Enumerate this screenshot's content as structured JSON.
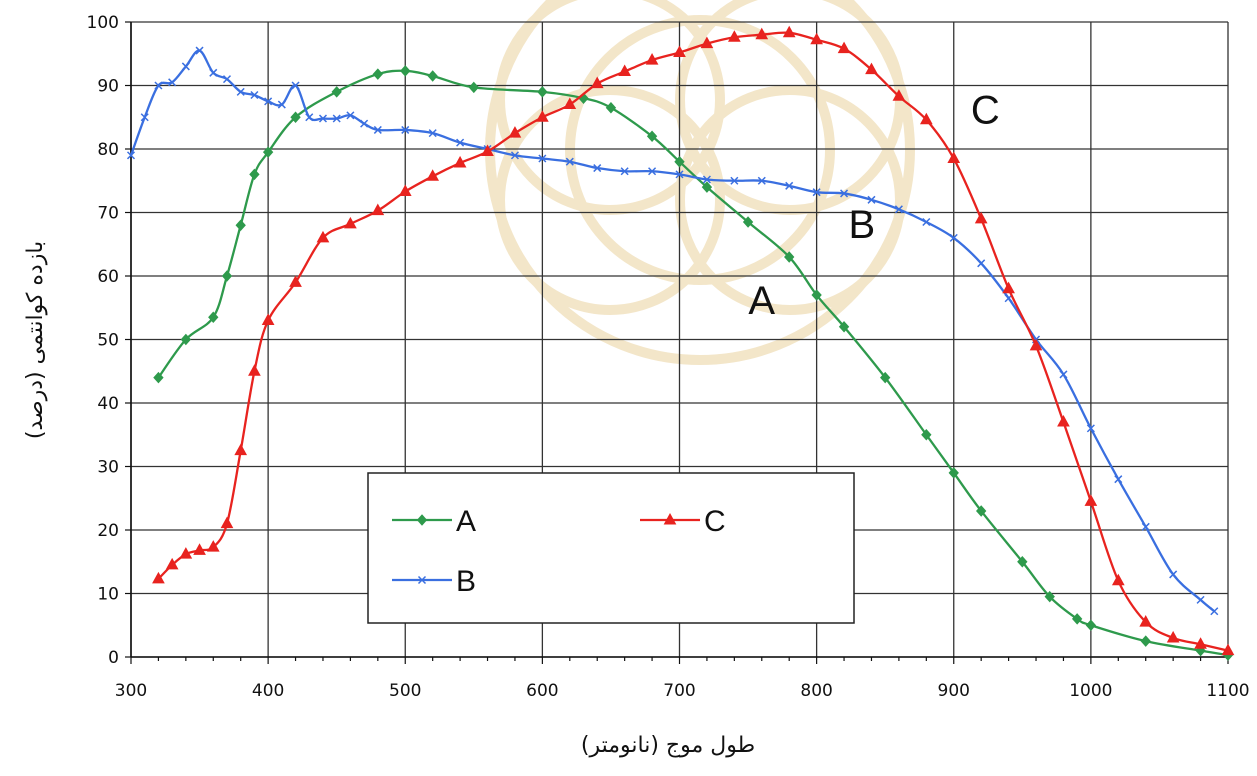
{
  "chart_data": {
    "type": "line",
    "xlabel": "طول موج (نانومتر)",
    "ylabel": "بازده کوانتمی (درصد)",
    "xlim": [
      300,
      1100
    ],
    "ylim": [
      0,
      100
    ],
    "x_ticks": [
      300,
      400,
      500,
      600,
      700,
      800,
      900,
      1000,
      1100
    ],
    "y_ticks": [
      0,
      10,
      20,
      30,
      40,
      50,
      60,
      70,
      80,
      90,
      100
    ],
    "grid": true,
    "legend": {
      "placement": "bottom-center",
      "entries": [
        "A",
        "B",
        "C"
      ]
    },
    "series": [
      {
        "name": "A",
        "color": "#2e9a4c",
        "marker": "diamond",
        "points": [
          [
            320,
            44
          ],
          [
            340,
            50
          ],
          [
            360,
            53.5
          ],
          [
            370,
            60
          ],
          [
            380,
            68
          ],
          [
            390,
            76
          ],
          [
            400,
            79.5
          ],
          [
            420,
            85
          ],
          [
            450,
            89
          ],
          [
            480,
            91.8
          ],
          [
            500,
            92.3
          ],
          [
            520,
            91.5
          ],
          [
            550,
            89.7
          ],
          [
            600,
            89
          ],
          [
            630,
            88
          ],
          [
            650,
            86.5
          ],
          [
            680,
            82
          ],
          [
            700,
            78
          ],
          [
            720,
            74
          ],
          [
            750,
            68.5
          ],
          [
            780,
            63
          ],
          [
            800,
            57
          ],
          [
            820,
            52
          ],
          [
            850,
            44
          ],
          [
            880,
            35
          ],
          [
            900,
            29
          ],
          [
            920,
            23
          ],
          [
            950,
            15
          ],
          [
            970,
            9.5
          ],
          [
            990,
            6
          ],
          [
            1000,
            5
          ],
          [
            1040,
            2.5
          ],
          [
            1080,
            1
          ],
          [
            1100,
            0.3
          ]
        ]
      },
      {
        "name": "B",
        "color": "#3a6fe0",
        "marker": "x",
        "points": [
          [
            300,
            79
          ],
          [
            310,
            85
          ],
          [
            320,
            90
          ],
          [
            330,
            90.5
          ],
          [
            340,
            93
          ],
          [
            350,
            95.5
          ],
          [
            360,
            92
          ],
          [
            370,
            91
          ],
          [
            380,
            89
          ],
          [
            390,
            88.5
          ],
          [
            400,
            87.5
          ],
          [
            410,
            87
          ],
          [
            420,
            90
          ],
          [
            430,
            85
          ],
          [
            440,
            84.8
          ],
          [
            450,
            84.8
          ],
          [
            460,
            85.3
          ],
          [
            470,
            84
          ],
          [
            480,
            83
          ],
          [
            500,
            83
          ],
          [
            520,
            82.5
          ],
          [
            540,
            81
          ],
          [
            560,
            80
          ],
          [
            580,
            79
          ],
          [
            600,
            78.5
          ],
          [
            620,
            78
          ],
          [
            640,
            77
          ],
          [
            660,
            76.5
          ],
          [
            680,
            76.5
          ],
          [
            700,
            76
          ],
          [
            720,
            75.2
          ],
          [
            740,
            75
          ],
          [
            760,
            75
          ],
          [
            780,
            74.2
          ],
          [
            800,
            73.2
          ],
          [
            820,
            73
          ],
          [
            840,
            72
          ],
          [
            860,
            70.5
          ],
          [
            880,
            68.5
          ],
          [
            900,
            66
          ],
          [
            920,
            62
          ],
          [
            940,
            56.5
          ],
          [
            960,
            50
          ],
          [
            980,
            44.5
          ],
          [
            1000,
            36
          ],
          [
            1020,
            28
          ],
          [
            1040,
            20.5
          ],
          [
            1060,
            13
          ],
          [
            1080,
            9
          ],
          [
            1090,
            7.2
          ]
        ]
      },
      {
        "name": "C",
        "color": "#e8231f",
        "marker": "triangle",
        "points": [
          [
            320,
            12.3
          ],
          [
            330,
            14.5
          ],
          [
            340,
            16.2
          ],
          [
            350,
            16.8
          ],
          [
            360,
            17.3
          ],
          [
            370,
            21
          ],
          [
            380,
            32.5
          ],
          [
            390,
            45
          ],
          [
            400,
            53
          ],
          [
            420,
            59
          ],
          [
            440,
            66
          ],
          [
            460,
            68.2
          ],
          [
            480,
            70.3
          ],
          [
            500,
            73.3
          ],
          [
            520,
            75.7
          ],
          [
            540,
            77.8
          ],
          [
            560,
            79.6
          ],
          [
            580,
            82.5
          ],
          [
            600,
            85
          ],
          [
            620,
            87
          ],
          [
            640,
            90.3
          ],
          [
            660,
            92.2
          ],
          [
            680,
            94
          ],
          [
            700,
            95.2
          ],
          [
            720,
            96.6
          ],
          [
            740,
            97.6
          ],
          [
            760,
            98
          ],
          [
            780,
            98.3
          ],
          [
            800,
            97.2
          ],
          [
            820,
            95.8
          ],
          [
            840,
            92.5
          ],
          [
            860,
            88.3
          ],
          [
            880,
            84.6
          ],
          [
            900,
            78.5
          ],
          [
            920,
            69
          ],
          [
            940,
            58
          ],
          [
            960,
            49
          ],
          [
            980,
            37
          ],
          [
            1000,
            24.5
          ],
          [
            1020,
            12
          ],
          [
            1040,
            5.5
          ],
          [
            1060,
            3
          ],
          [
            1080,
            2
          ],
          [
            1100,
            1
          ]
        ]
      }
    ],
    "annotations": [
      {
        "text": "A",
        "x": 760,
        "y": 54
      },
      {
        "text": "B",
        "x": 833,
        "y": 66
      },
      {
        "text": "C",
        "x": 923,
        "y": 84
      }
    ]
  }
}
